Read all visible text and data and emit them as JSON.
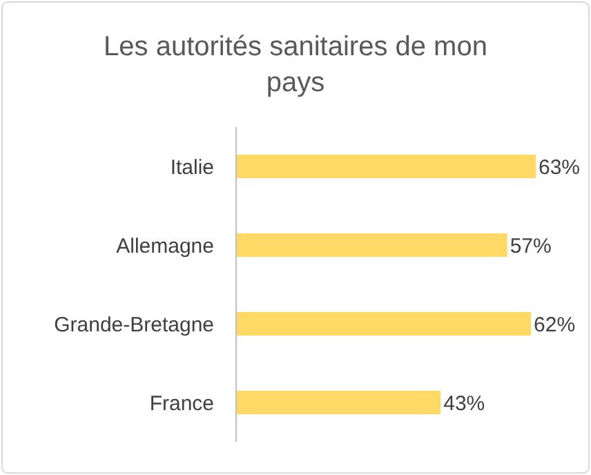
{
  "chart_data": {
    "type": "bar",
    "orientation": "horizontal",
    "title": "Les autorités sanitaires de mon pays",
    "categories": [
      "Italie",
      "Allemagne",
      "Grande-Bretagne",
      "France"
    ],
    "values": [
      63,
      57,
      62,
      43
    ],
    "value_labels": [
      "63%",
      "57%",
      "62%",
      "43%"
    ],
    "color": "#ffd966",
    "tick_labels": "y"
  }
}
